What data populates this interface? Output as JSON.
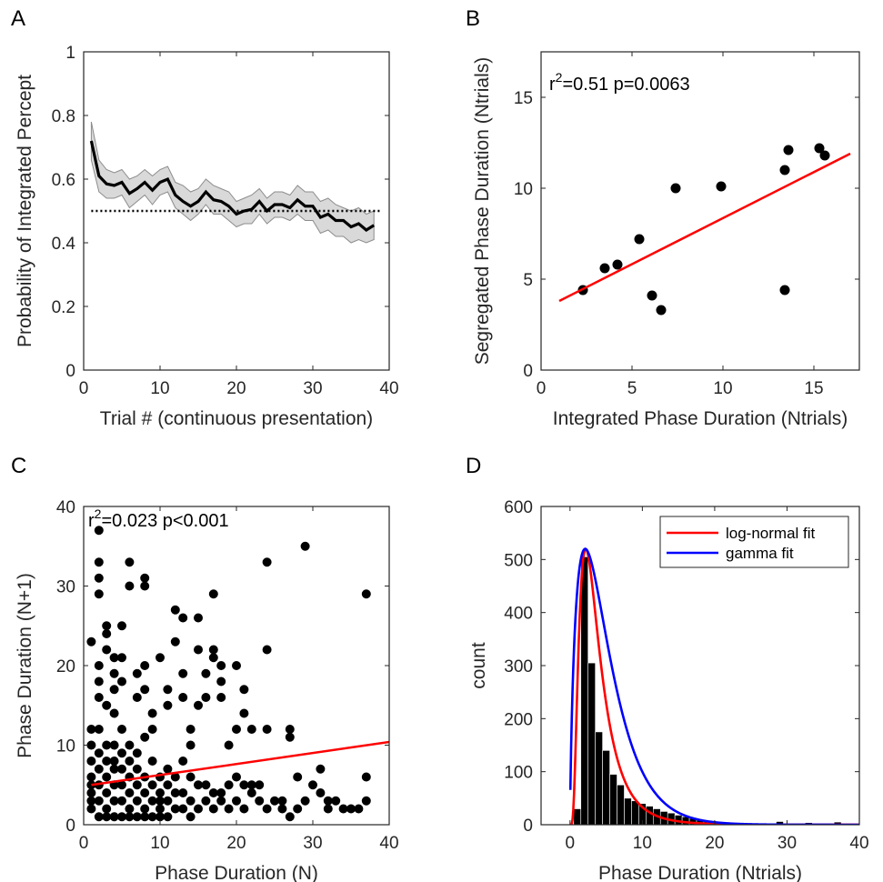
{
  "chart_data": [
    {
      "panel": "A",
      "type": "line",
      "ylabel": "Probability of Integrated Percept",
      "xlabel": "Trial # (continuous presentation)",
      "xlim": [
        0,
        40
      ],
      "ylim": [
        0,
        1
      ],
      "xticks": [
        "0",
        "10",
        "20",
        "30",
        "40"
      ],
      "yticks": [
        "0",
        "0.2",
        "0.4",
        "0.6",
        "0.8",
        "1"
      ],
      "x": [
        1,
        2,
        3,
        4,
        5,
        6,
        7,
        8,
        9,
        10,
        11,
        12,
        13,
        14,
        15,
        16,
        17,
        18,
        19,
        20,
        21,
        22,
        23,
        24,
        25,
        26,
        27,
        28,
        29,
        30,
        31,
        32,
        33,
        34,
        35,
        36,
        37,
        38
      ],
      "series": [
        {
          "values": [
            0.72,
            0.61,
            0.585,
            0.58,
            0.59,
            0.555,
            0.57,
            0.59,
            0.565,
            0.59,
            0.6,
            0.55,
            0.53,
            0.515,
            0.53,
            0.56,
            0.535,
            0.53,
            0.515,
            0.49,
            0.5,
            0.505,
            0.53,
            0.5,
            0.52,
            0.52,
            0.51,
            0.535,
            0.515,
            0.515,
            0.48,
            0.49,
            0.47,
            0.47,
            0.45,
            0.46,
            0.44,
            0.455
          ],
          "upper": [
            0.78,
            0.66,
            0.63,
            0.62,
            0.63,
            0.6,
            0.61,
            0.63,
            0.61,
            0.63,
            0.64,
            0.59,
            0.58,
            0.56,
            0.57,
            0.6,
            0.58,
            0.57,
            0.56,
            0.53,
            0.54,
            0.55,
            0.57,
            0.54,
            0.56,
            0.56,
            0.55,
            0.58,
            0.56,
            0.56,
            0.53,
            0.54,
            0.52,
            0.51,
            0.5,
            0.51,
            0.49,
            0.5
          ],
          "lower": [
            0.66,
            0.56,
            0.54,
            0.54,
            0.55,
            0.51,
            0.53,
            0.55,
            0.52,
            0.55,
            0.56,
            0.51,
            0.49,
            0.47,
            0.49,
            0.52,
            0.49,
            0.49,
            0.47,
            0.45,
            0.46,
            0.46,
            0.49,
            0.46,
            0.48,
            0.48,
            0.47,
            0.49,
            0.47,
            0.47,
            0.43,
            0.44,
            0.42,
            0.42,
            0.4,
            0.41,
            0.4,
            0.41
          ]
        }
      ],
      "reference_line": 0.5
    },
    {
      "panel": "B",
      "type": "scatter",
      "ylabel": "Segregated Phase Duration (Ntrials)",
      "xlabel": "Integrated Phase Duration (Ntrials)",
      "xlim": [
        0,
        17.5
      ],
      "ylim": [
        0,
        17.5
      ],
      "xticks": [
        "0",
        "5",
        "10",
        "15"
      ],
      "yticks": [
        "0",
        "5",
        "10",
        "15"
      ],
      "annotation": "r^2=0.51 p=0.0063",
      "points": [
        [
          2.3,
          4.4
        ],
        [
          3.5,
          5.6
        ],
        [
          4.2,
          5.8
        ],
        [
          5.4,
          7.2
        ],
        [
          6.1,
          4.1
        ],
        [
          6.6,
          3.3
        ],
        [
          7.4,
          10.0
        ],
        [
          9.9,
          10.1
        ],
        [
          13.4,
          11.0
        ],
        [
          13.6,
          12.1
        ],
        [
          13.4,
          4.4
        ],
        [
          15.3,
          12.2
        ],
        [
          15.6,
          11.8
        ]
      ],
      "fit": {
        "x": [
          1,
          17
        ],
        "y": [
          3.8,
          11.9
        ]
      }
    },
    {
      "panel": "C",
      "type": "scatter",
      "ylabel": "Phase Duration (N+1)",
      "xlabel": "Phase Duration (N)",
      "xlim": [
        0,
        40
      ],
      "ylim": [
        0,
        40
      ],
      "xticks": [
        "0",
        "10",
        "20",
        "30",
        "40"
      ],
      "yticks": [
        "0",
        "10",
        "20",
        "30",
        "40"
      ],
      "annotation": "r^2=0.023 p<0.001",
      "points": [
        [
          1,
          23
        ],
        [
          2,
          37
        ],
        [
          2,
          33
        ],
        [
          2,
          31
        ],
        [
          2,
          29
        ],
        [
          3,
          25
        ],
        [
          3,
          24
        ],
        [
          3,
          22
        ],
        [
          2,
          20
        ],
        [
          2,
          18
        ],
        [
          2,
          16
        ],
        [
          3,
          15
        ],
        [
          4,
          21
        ],
        [
          4,
          19
        ],
        [
          4,
          17
        ],
        [
          5,
          25
        ],
        [
          5,
          21
        ],
        [
          5,
          18
        ],
        [
          6,
          33
        ],
        [
          6,
          30
        ],
        [
          7,
          19
        ],
        [
          7,
          16
        ],
        [
          8,
          31
        ],
        [
          8,
          30
        ],
        [
          8,
          20
        ],
        [
          8,
          17
        ],
        [
          9,
          14
        ],
        [
          9,
          12
        ],
        [
          10,
          21
        ],
        [
          11,
          17
        ],
        [
          11,
          15
        ],
        [
          12,
          27
        ],
        [
          12,
          23
        ],
        [
          13,
          26
        ],
        [
          13,
          19
        ],
        [
          13,
          16
        ],
        [
          14,
          12
        ],
        [
          14,
          10
        ],
        [
          15,
          26
        ],
        [
          15,
          22
        ],
        [
          15,
          15
        ],
        [
          16,
          19
        ],
        [
          16,
          16
        ],
        [
          17,
          29
        ],
        [
          17,
          22
        ],
        [
          17,
          21
        ],
        [
          18,
          20
        ],
        [
          18,
          18
        ],
        [
          18,
          16
        ],
        [
          19,
          10
        ],
        [
          20,
          12
        ],
        [
          20,
          20
        ],
        [
          21,
          17
        ],
        [
          21,
          14
        ],
        [
          22,
          12
        ],
        [
          24,
          33
        ],
        [
          24,
          22
        ],
        [
          24,
          12
        ],
        [
          27,
          12
        ],
        [
          27,
          11
        ],
        [
          28,
          6
        ],
        [
          29,
          35
        ],
        [
          31,
          7
        ],
        [
          37,
          29
        ],
        [
          37,
          6
        ],
        [
          37,
          3
        ],
        [
          36,
          2
        ],
        [
          34,
          2
        ],
        [
          33,
          3
        ],
        [
          32,
          3
        ],
        [
          31,
          4
        ],
        [
          28,
          2
        ],
        [
          27,
          1
        ],
        [
          26,
          2
        ],
        [
          25,
          3
        ],
        [
          23,
          5
        ],
        [
          22,
          4
        ],
        [
          21,
          5
        ],
        [
          20,
          6
        ],
        [
          19,
          2
        ],
        [
          18,
          4
        ],
        [
          17,
          2
        ],
        [
          16,
          3
        ],
        [
          15,
          5
        ],
        [
          14,
          6
        ],
        [
          13,
          8
        ],
        [
          12,
          4
        ],
        [
          11,
          7
        ],
        [
          10,
          3
        ],
        [
          9,
          8
        ],
        [
          8,
          11
        ],
        [
          7,
          9
        ],
        [
          6,
          8
        ],
        [
          5,
          12
        ],
        [
          4,
          14
        ],
        [
          3,
          10
        ],
        [
          2,
          12
        ],
        [
          1,
          12
        ],
        [
          1,
          10
        ],
        [
          1,
          8
        ],
        [
          1,
          6
        ],
        [
          1,
          5
        ],
        [
          1,
          4
        ],
        [
          1,
          3
        ],
        [
          1,
          2
        ],
        [
          2,
          9
        ],
        [
          2,
          7
        ],
        [
          2,
          5
        ],
        [
          2,
          3
        ],
        [
          2,
          1
        ],
        [
          3,
          8
        ],
        [
          3,
          6
        ],
        [
          3,
          4
        ],
        [
          3,
          2
        ],
        [
          3,
          1
        ],
        [
          4,
          10
        ],
        [
          4,
          8
        ],
        [
          4,
          7
        ],
        [
          4,
          5
        ],
        [
          4,
          3
        ],
        [
          4,
          1
        ],
        [
          5,
          9
        ],
        [
          5,
          7
        ],
        [
          5,
          5
        ],
        [
          5,
          3
        ],
        [
          5,
          1
        ],
        [
          6,
          10
        ],
        [
          6,
          6
        ],
        [
          6,
          4
        ],
        [
          6,
          2
        ],
        [
          6,
          1
        ],
        [
          7,
          7
        ],
        [
          7,
          5
        ],
        [
          7,
          3
        ],
        [
          7,
          1
        ],
        [
          8,
          6
        ],
        [
          8,
          4
        ],
        [
          8,
          2
        ],
        [
          8,
          1
        ],
        [
          9,
          5
        ],
        [
          9,
          3
        ],
        [
          9,
          1
        ],
        [
          10,
          6
        ],
        [
          10,
          4
        ],
        [
          10,
          2
        ],
        [
          10,
          1
        ],
        [
          11,
          5
        ],
        [
          11,
          3
        ],
        [
          11,
          1
        ],
        [
          12,
          6
        ],
        [
          12,
          2
        ],
        [
          13,
          4
        ],
        [
          13,
          2
        ],
        [
          14,
          3
        ],
        [
          14,
          1
        ],
        [
          15,
          2
        ],
        [
          16,
          5
        ],
        [
          17,
          4
        ],
        [
          18,
          3
        ],
        [
          19,
          5
        ],
        [
          20,
          3
        ],
        [
          21,
          2
        ],
        [
          22,
          5
        ],
        [
          23,
          3
        ],
        [
          24,
          2
        ],
        [
          26,
          3
        ],
        [
          29,
          3
        ],
        [
          30,
          5
        ],
        [
          32,
          2
        ],
        [
          35,
          2
        ]
      ],
      "fit": {
        "x": [
          1,
          40
        ],
        "y": [
          5.0,
          10.4
        ]
      }
    },
    {
      "panel": "D",
      "type": "bar",
      "ylabel": "count",
      "xlabel": "Phase Duration (Ntrials)",
      "xlim": [
        -4,
        40
      ],
      "ylim": [
        0,
        600
      ],
      "xticks": [
        "0",
        "10",
        "20",
        "30",
        "40"
      ],
      "yticks": [
        "0",
        "100",
        "200",
        "300",
        "400",
        "500",
        "600"
      ],
      "categories": [
        1,
        2,
        3,
        4,
        5,
        6,
        7,
        8,
        9,
        10,
        11,
        12,
        13,
        14,
        15,
        16,
        17,
        18,
        19,
        20,
        21,
        22,
        23,
        24,
        25,
        26,
        27,
        28,
        29,
        30,
        31,
        32,
        33,
        34,
        35,
        36,
        37,
        38,
        39
      ],
      "values": [
        30,
        505,
        305,
        175,
        140,
        95,
        75,
        50,
        45,
        40,
        35,
        30,
        25,
        22,
        18,
        15,
        12,
        10,
        8,
        6,
        5,
        4,
        3,
        3,
        2,
        2,
        1,
        1,
        6,
        1,
        1,
        0,
        4,
        0,
        0,
        0,
        5,
        0,
        0
      ],
      "legend": [
        "log-normal fit",
        "gamma fit"
      ],
      "legend_colors": [
        "#ff0000",
        "#0000ff"
      ],
      "legend_position": "top-right"
    }
  ],
  "panel_letters": [
    "A",
    "B",
    "C",
    "D"
  ],
  "colors": {
    "fit": "#ff0000",
    "gamma": "#0000ff",
    "band": "#d9d9d9",
    "band_edge": "#8c8c8c"
  }
}
